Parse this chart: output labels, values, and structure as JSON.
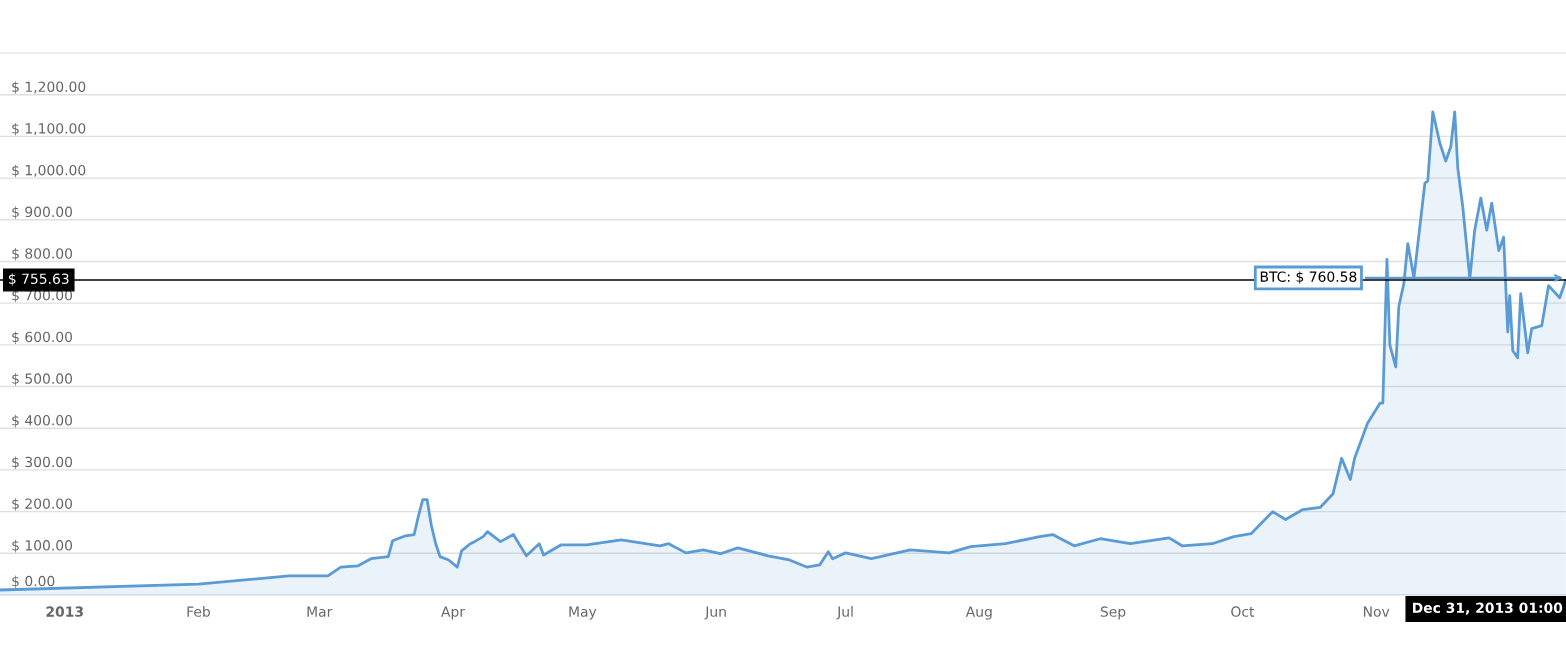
{
  "chart_data": {
    "type": "area",
    "x": [
      "2012-12-17",
      "2013-02-01",
      "2013-02-17",
      "2013-02-22",
      "2013-03-03",
      "2013-03-06",
      "2013-03-10",
      "2013-03-13",
      "2013-03-17",
      "2013-03-18",
      "2013-03-21",
      "2013-03-23",
      "2013-03-24",
      "2013-03-25",
      "2013-03-26",
      "2013-03-27",
      "2013-03-28",
      "2013-03-29",
      "2013-03-31",
      "2013-04-02",
      "2013-04-03",
      "2013-04-05",
      "2013-04-06",
      "2013-04-08",
      "2013-04-09",
      "2013-04-12",
      "2013-04-15",
      "2013-04-18",
      "2013-04-21",
      "2013-04-22",
      "2013-04-26",
      "2013-05-02",
      "2013-05-10",
      "2013-05-19",
      "2013-05-21",
      "2013-05-25",
      "2013-05-29",
      "2013-06-02",
      "2013-06-06",
      "2013-06-13",
      "2013-06-18",
      "2013-06-22",
      "2013-06-25",
      "2013-06-27",
      "2013-06-28",
      "2013-07-01",
      "2013-07-07",
      "2013-07-16",
      "2013-07-25",
      "2013-07-30",
      "2013-08-07",
      "2013-08-15",
      "2013-08-18",
      "2013-08-23",
      "2013-08-29",
      "2013-09-05",
      "2013-09-14",
      "2013-09-17",
      "2013-09-24",
      "2013-09-29",
      "2013-10-03",
      "2013-10-08",
      "2013-10-11",
      "2013-10-15",
      "2013-10-19",
      "2013-10-22",
      "2013-10-24",
      "2013-10-26",
      "2013-10-27",
      "2013-10-30",
      "2013-11-01T21:00",
      "2013-11-02T13:00",
      "2013-11-03T12:00",
      "2013-11-04T04:00",
      "2013-11-05T13:00",
      "2013-11-06T06:00",
      "2013-11-07T10:00",
      "2013-11-08T08:00",
      "2013-11-09T18:00",
      "2013-11-12T07:00",
      "2013-11-12T23:00",
      "2013-11-14T03:00",
      "2013-11-15T18:00",
      "2013-11-17T03:00",
      "2013-11-18T07:00",
      "2013-11-19T05:00",
      "2013-11-19T22:00",
      "2013-11-21T02:00",
      "2013-11-22T17:00",
      "2013-11-23T20:00",
      "2013-11-25T06:00",
      "2013-11-26T15:00",
      "2013-11-27T19:00",
      "2013-11-29T10:00",
      "2013-11-30T13:00",
      "2013-12-01T12:00",
      "2013-12-01T23:00",
      "2013-12-02T16:00",
      "2013-12-03T19:00",
      "2013-12-04T12:00",
      "2013-12-06T03:00",
      "2013-12-07T01:00",
      "2013-12-09T09:00",
      "2013-12-10T23:00",
      "2013-12-13T13:00",
      "2013-12-14T22:00"
    ],
    "series": [
      {
        "color": "#5b9bd5",
        "values": [
          12,
          26,
          41,
          46,
          46,
          67,
          70,
          87,
          92,
          130,
          142,
          145,
          190,
          229,
          229,
          166,
          123,
          92,
          84,
          67,
          106,
          123,
          128,
          140,
          152,
          128,
          145,
          94,
          123,
          96,
          120,
          120,
          132,
          118,
          123,
          101,
          108,
          99,
          113,
          94,
          84,
          67,
          72,
          104,
          87,
          101,
          87,
          108,
          101,
          116,
          123,
          140,
          145,
          118,
          135,
          123,
          137,
          118,
          123,
          140,
          147,
          200,
          181,
          205,
          210,
          243,
          328,
          277,
          328,
          412,
          460,
          460,
          805,
          600,
          547,
          692,
          747,
          843,
          761,
          988,
          993,
          1159,
          1084,
          1041,
          1075,
          1159,
          1024,
          930,
          759,
          875,
          952,
          875,
          940,
          826,
          858,
          631,
          718,
          586,
          569,
          723,
          581,
          639,
          646,
          742,
          713,
          754
        ]
      }
    ],
    "xlim": [
      "2012-12-17",
      "2013-12-15"
    ],
    "xticks": [
      {
        "value": "2013-01-01",
        "label": "2013"
      },
      {
        "value": "2013-02-01",
        "label": "Feb"
      },
      {
        "value": "2013-03-01",
        "label": "Mar"
      },
      {
        "value": "2013-04-01",
        "label": "Apr"
      },
      {
        "value": "2013-05-01",
        "label": "May"
      },
      {
        "value": "2013-06-01",
        "label": "Jun"
      },
      {
        "value": "2013-07-01",
        "label": "Jul"
      },
      {
        "value": "2013-08-01",
        "label": "Aug"
      },
      {
        "value": "2013-09-01",
        "label": "Sep"
      },
      {
        "value": "2013-10-01",
        "label": "Oct"
      },
      {
        "value": "2013-11-01",
        "label": "Nov"
      }
    ],
    "ylim": [
      0,
      1300
    ],
    "yticks": [
      {
        "value": 0,
        "label": "$ 0.00"
      },
      {
        "value": 100,
        "label": "$ 100.00"
      },
      {
        "value": 200,
        "label": "$ 200.00"
      },
      {
        "value": 300,
        "label": "$ 300.00"
      },
      {
        "value": 400,
        "label": "$ 400.00"
      },
      {
        "value": 500,
        "label": "$ 500.00"
      },
      {
        "value": 600,
        "label": "$ 600.00"
      },
      {
        "value": 700,
        "label": "$ 700.00"
      },
      {
        "value": 800,
        "label": "$ 800.00"
      },
      {
        "value": 900,
        "label": "$ 900.00"
      },
      {
        "value": 1000,
        "label": "$ 1,000.00"
      },
      {
        "value": 1100,
        "label": "$ 1,100.00"
      },
      {
        "value": 1200,
        "label": "$ 1,200.00"
      }
    ],
    "grid": "y",
    "ref_lines": [
      {
        "axis": "y",
        "value": 755.63,
        "label": "$ 755.63",
        "color": "#000000"
      }
    ],
    "annotations": [
      {
        "text": "BTC: $ 760.58",
        "x": "2013-12-14T22:00",
        "y": 760.58
      },
      "Dec 31, 2013 01:00"
    ]
  }
}
